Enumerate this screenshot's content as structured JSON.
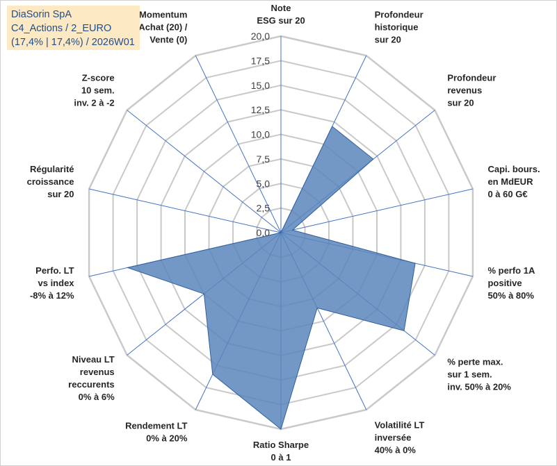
{
  "info": {
    "line1": "DiaSorin SpA",
    "line2": "C4_Actions / 2_EURO",
    "line3": "(17,4% | 17,4%) / 2026W01"
  },
  "colors": {
    "fill": "#5b86bb",
    "stroke": "#2f5f9e",
    "grid": "#c9c9c9",
    "spoke": "#4472c4",
    "info_bg": "#fde9c4",
    "info_text": "#1f4e8c"
  },
  "chart_data": {
    "type": "radar",
    "rmin": 0,
    "rmax": 20,
    "tick_step": 2.5,
    "tick_labels": [
      "0,0",
      "2,5",
      "5,0",
      "7,5",
      "10,0",
      "12,5",
      "15,0",
      "17,5",
      "20,0"
    ],
    "axes": [
      {
        "lines": [
          "Note",
          "ESG sur 20"
        ],
        "value": 0
      },
      {
        "lines": [
          "Profondeur",
          "historique",
          "sur 20"
        ],
        "value": 12
      },
      {
        "lines": [
          "Profondeur",
          "revenus",
          "sur 20"
        ],
        "value": 12
      },
      {
        "lines": [
          "Capi. bours.",
          "en MdEUR",
          "0 à 60 G€"
        ],
        "value": 1.2
      },
      {
        "lines": [
          "% perfo 1A",
          "positive",
          "50% à 80%"
        ],
        "value": 14
      },
      {
        "lines": [
          "% perte max.",
          "sur 1 sem.",
          "inv. 50% à 20%"
        ],
        "value": 16
      },
      {
        "lines": [
          "Volatilité LT",
          "inversée",
          "40% à 0%"
        ],
        "value": 8.5
      },
      {
        "lines": [
          "Ratio Sharpe",
          "0 à 1"
        ],
        "value": 20
      },
      {
        "lines": [
          "Rendement LT",
          "0% à 20%"
        ],
        "value": 16
      },
      {
        "lines": [
          "Niveau LT",
          "revenus",
          "reccurents",
          "0% à 6%"
        ],
        "value": 10
      },
      {
        "lines": [
          "Perfo. LT",
          "vs index",
          "-8% à 12%"
        ],
        "value": 16
      },
      {
        "lines": [
          "Régularité",
          "croissance",
          "sur 20"
        ],
        "value": 0
      },
      {
        "lines": [
          "Z-score",
          "10 sem.",
          "inv. 2 à -2"
        ],
        "value": 0
      },
      {
        "lines": [
          "Momentum",
          "Achat (20) /",
          "Vente (0)"
        ],
        "value": 0
      }
    ]
  }
}
